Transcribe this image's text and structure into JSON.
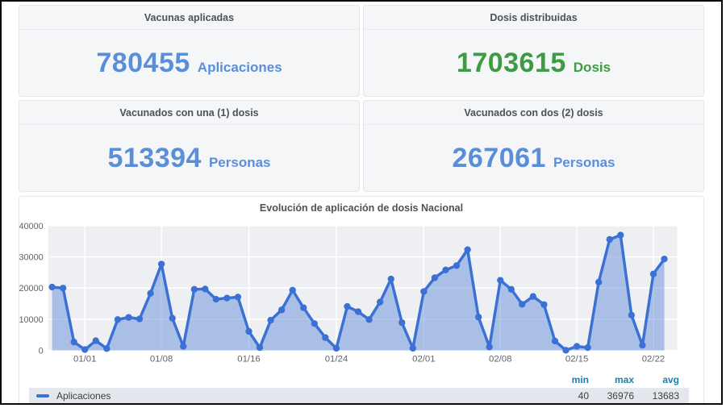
{
  "cards": [
    {
      "title": "Vacunas aplicadas",
      "value": "780455",
      "unit": "Aplicaciones",
      "color": "#5b8ed8"
    },
    {
      "title": "Dosis distribuidas",
      "value": "1703615",
      "unit": "Dosis",
      "color": "#3f9a45"
    },
    {
      "title": "Vacunados con una (1) dosis",
      "value": "513394",
      "unit": "Personas",
      "color": "#5b8ed8"
    },
    {
      "title": "Vacunados con dos (2) dosis",
      "value": "267061",
      "unit": "Personas",
      "color": "#5b8ed8"
    }
  ],
  "chart": {
    "title": "Evolución de aplicación de dosis Nacional",
    "legend_label": "Aplicaciones",
    "stats": {
      "min_label": "min",
      "max_label": "max",
      "avg_label": "avg",
      "min": "40",
      "max": "36976",
      "avg": "13683"
    }
  },
  "chart_data": {
    "type": "area",
    "title": "Evolución de aplicación de dosis Nacional",
    "x": [
      "12/29",
      "12/30",
      "12/31",
      "01/01",
      "01/02",
      "01/03",
      "01/04",
      "01/05",
      "01/06",
      "01/07",
      "01/08",
      "01/09",
      "01/10",
      "01/11",
      "01/12",
      "01/13",
      "01/14",
      "01/15",
      "01/16",
      "01/17",
      "01/18",
      "01/19",
      "01/20",
      "01/21",
      "01/22",
      "01/23",
      "01/24",
      "01/25",
      "01/26",
      "01/27",
      "01/28",
      "01/29",
      "01/30",
      "01/31",
      "02/01",
      "02/02",
      "02/03",
      "02/04",
      "02/05",
      "02/06",
      "02/07",
      "02/08",
      "02/09",
      "02/10",
      "02/11",
      "02/12",
      "02/13",
      "02/14",
      "02/15",
      "02/16",
      "02/17",
      "02/18",
      "02/19",
      "02/20",
      "02/21",
      "02/22",
      "02/23"
    ],
    "series": [
      {
        "name": "Aplicaciones",
        "values": [
          20300,
          20000,
          2700,
          250,
          3100,
          600,
          9900,
          10600,
          10100,
          18300,
          27700,
          10300,
          1300,
          19600,
          19700,
          16400,
          16800,
          17100,
          6100,
          900,
          9700,
          13000,
          19300,
          13700,
          8600,
          4100,
          700,
          14100,
          12400,
          9900,
          15500,
          22900,
          8900,
          700,
          18900,
          23315,
          25800,
          27200,
          32300,
          10700,
          1100,
          22500,
          19600,
          14800,
          17300,
          14700,
          3000,
          40,
          1300,
          900,
          21900,
          35600,
          36976,
          11300,
          1650,
          24500,
          29300
        ]
      }
    ],
    "xtick_indices": [
      3,
      10,
      18,
      26,
      34,
      41,
      48,
      55
    ],
    "xtick_labels": [
      "01/01",
      "01/08",
      "01/16",
      "01/24",
      "02/01",
      "02/08",
      "02/15",
      "02/22"
    ],
    "yticks": [
      0,
      10000,
      20000,
      30000,
      40000
    ],
    "ylim": [
      0,
      40000
    ],
    "grid": true,
    "legend_position": "bottom",
    "stats": {
      "min": 40,
      "max": 36976,
      "avg": 13683
    },
    "colors": {
      "line": "#3b70d4",
      "fill": "rgba(88,134,216,0.45)",
      "plot_bg": "#edeff3",
      "grid": "#ffffff",
      "axis_text": "#5f6368"
    }
  }
}
